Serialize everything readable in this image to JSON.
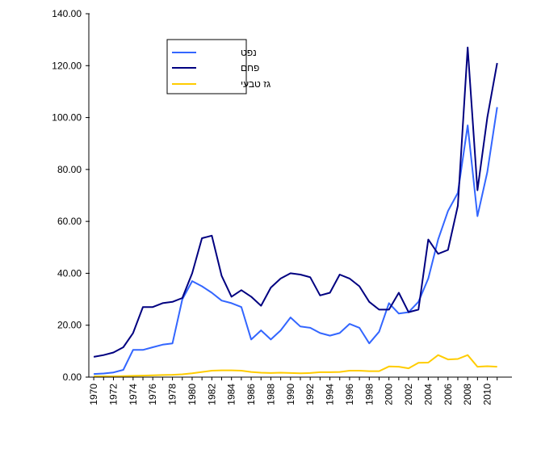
{
  "chart_data": {
    "type": "line",
    "x": [
      1970,
      1971,
      1972,
      1973,
      1974,
      1975,
      1976,
      1977,
      1978,
      1979,
      1980,
      1981,
      1982,
      1983,
      1984,
      1985,
      1986,
      1987,
      1988,
      1989,
      1990,
      1991,
      1992,
      1993,
      1994,
      1995,
      1996,
      1997,
      1998,
      1999,
      2000,
      2001,
      2002,
      2003,
      2004,
      2005,
      2006,
      2007,
      2008,
      2009,
      2010,
      2011
    ],
    "x_tick_labels": [
      "1970",
      "1972",
      "1974",
      "1976",
      "1978",
      "1980",
      "1982",
      "1984",
      "1986",
      "1988",
      "1990",
      "1992",
      "1994",
      "1996",
      "1998",
      "2000",
      "2002",
      "2004",
      "2006",
      "2008",
      "2010"
    ],
    "y_tick_labels": [
      "0.00",
      "20.00",
      "40.00",
      "60.00",
      "80.00",
      "100.00",
      "120.00",
      "140.00"
    ],
    "ylim": [
      0,
      140
    ],
    "grid": false,
    "legend_position": "top-left",
    "series": [
      {
        "name": "נפט",
        "color": "#3366ff",
        "values": [
          1.2,
          1.4,
          1.8,
          2.8,
          10.5,
          10.5,
          11.5,
          12.5,
          13.0,
          30.0,
          37.0,
          35.0,
          32.5,
          29.5,
          28.5,
          27.0,
          14.5,
          18.0,
          14.5,
          18.0,
          23.0,
          19.5,
          19.0,
          17.0,
          16.0,
          17.0,
          20.5,
          19.0,
          13.0,
          17.5,
          28.5,
          24.5,
          25.0,
          29.0,
          38.0,
          53.0,
          64.0,
          71.0,
          97.0,
          62.0,
          79.0,
          104.0
        ]
      },
      {
        "name": "פחם",
        "color": "#000080",
        "values": [
          7.8,
          8.5,
          9.5,
          11.5,
          17.0,
          27.0,
          27.0,
          28.5,
          29.0,
          30.5,
          40.0,
          53.5,
          54.5,
          39.0,
          31.0,
          33.5,
          31.0,
          27.5,
          34.5,
          38.0,
          40.0,
          39.5,
          38.5,
          31.5,
          32.5,
          39.5,
          38.0,
          35.0,
          29.0,
          26.0,
          26.0,
          32.5,
          25.0,
          26.0,
          53.0,
          47.5,
          49.0,
          66.0,
          127.0,
          72.0,
          100.0,
          121.0
        ]
      },
      {
        "name": "גז טבעי",
        "color": "#ffcc00",
        "values": [
          0.3,
          0.3,
          0.3,
          0.4,
          0.5,
          0.6,
          0.7,
          0.8,
          0.9,
          1.1,
          1.5,
          2.0,
          2.5,
          2.6,
          2.6,
          2.5,
          2.0,
          1.7,
          1.6,
          1.7,
          1.6,
          1.5,
          1.6,
          1.9,
          1.9,
          2.0,
          2.5,
          2.5,
          2.3,
          2.3,
          4.1,
          4.0,
          3.4,
          5.5,
          5.6,
          8.5,
          6.8,
          7.0,
          8.5,
          4.0,
          4.2,
          4.0
        ]
      }
    ]
  }
}
